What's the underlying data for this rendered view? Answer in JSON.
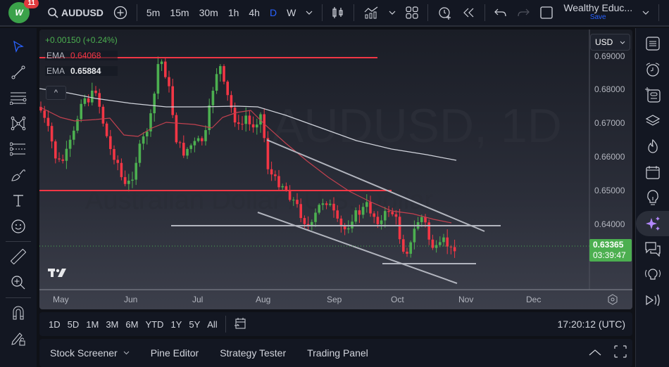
{
  "topbar": {
    "notification_count": "11",
    "symbol": "AUDUSD",
    "intervals": [
      "5m",
      "15m",
      "30m",
      "1h",
      "4h",
      "D",
      "W"
    ],
    "active_interval": "D",
    "layout_name": "Wealthy Educ...",
    "save_label": "Save"
  },
  "legend": {
    "change": "+0.00150 (+0.24%)",
    "ema1_label": "EMA",
    "ema1_value": "0.64068",
    "ema2_label": "EMA",
    "ema2_value": "0.65884",
    "collapse_icon": "^"
  },
  "watermark": {
    "line1": "AUDUSD, 1D",
    "line2": "Australian Dollar / U.S. Dollar"
  },
  "price_axis": {
    "currency": "USD",
    "ticks": [
      "0.69000",
      "0.68000",
      "0.67000",
      "0.66000",
      "0.65000",
      "0.64000"
    ],
    "current_price": "0.63365",
    "countdown": "03:39:47"
  },
  "time_axis": {
    "ticks": [
      "May",
      "Jun",
      "Jul",
      "Aug",
      "Sep",
      "Oct",
      "Nov",
      "Dec"
    ]
  },
  "timebar": {
    "ranges": [
      "1D",
      "5D",
      "1M",
      "3M",
      "6M",
      "YTD",
      "1Y",
      "5Y",
      "All"
    ],
    "clock": "17:20:12 (UTC)"
  },
  "bottom_tabs": [
    "Stock Screener",
    "Pine Editor",
    "Strategy Tester",
    "Trading Panel"
  ],
  "colors": {
    "up": "#4caf50",
    "down": "#f23645",
    "ema_fast": "#c2414f",
    "ema_slow": "#d1d4dc",
    "accent": "#2962ff",
    "resistance": "#f23645",
    "trendline": "#b2b5be"
  },
  "chart_data": {
    "type": "candlestick",
    "symbol": "AUDUSD",
    "timeframe": "1D",
    "ylim": [
      0.6265,
      0.6915
    ],
    "horizontal_levels": [
      0.689,
      0.65,
      0.6395,
      0.634
    ],
    "last_price": 0.63365,
    "ema_fast_last": 0.64068,
    "ema_slow_last": 0.65884
  }
}
